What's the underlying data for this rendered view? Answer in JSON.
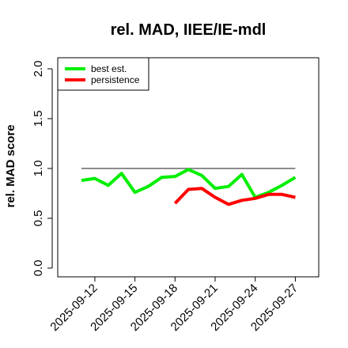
{
  "chart_data": {
    "type": "line",
    "title": "rel. MAD, IIEE/IE-mdl",
    "ylabel": "rel. MAD score",
    "xlabel": "",
    "ylim": [
      0,
      2.0
    ],
    "yticks": [
      "0.0",
      "0.5",
      "1.0",
      "1.5",
      "2.0"
    ],
    "xticks": [
      "2025-09-12",
      "2025-09-15",
      "2025-09-18",
      "2025-09-21",
      "2025-09-24",
      "2025-09-27"
    ],
    "x": [
      "2025-09-11",
      "2025-09-12",
      "2025-09-13",
      "2025-09-14",
      "2025-09-15",
      "2025-09-16",
      "2025-09-17",
      "2025-09-18",
      "2025-09-19",
      "2025-09-20",
      "2025-09-21",
      "2025-09-22",
      "2025-09-23",
      "2025-09-24",
      "2025-09-25",
      "2025-09-26",
      "2025-09-27"
    ],
    "reference_line": 1.0,
    "legend_position": "top-left",
    "series": [
      {
        "name": "best est.",
        "color": "#00ee00",
        "values": [
          0.88,
          0.9,
          0.83,
          0.95,
          0.76,
          0.82,
          0.91,
          0.92,
          0.99,
          0.93,
          0.8,
          0.82,
          0.94,
          0.71,
          0.76,
          0.83,
          0.91
        ]
      },
      {
        "name": "persistence",
        "color": "#ff0000",
        "values": [
          null,
          null,
          null,
          null,
          null,
          null,
          null,
          0.65,
          0.79,
          0.8,
          0.71,
          0.64,
          0.68,
          0.7,
          0.74,
          0.74,
          0.71
        ]
      }
    ]
  }
}
